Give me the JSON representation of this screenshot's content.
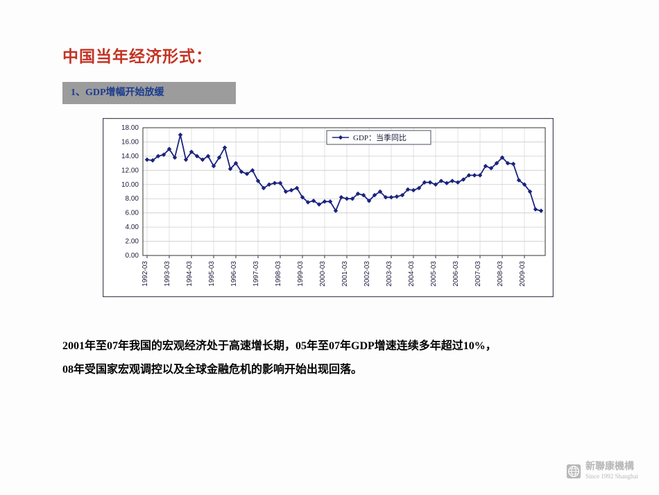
{
  "title": {
    "text": "中国当年经济形式：",
    "color": "#c33323"
  },
  "subtitle": {
    "text": "1、GDP增幅开始放缓",
    "bg_color": "#9c9c9c",
    "text_color": "#1a3b8e"
  },
  "chart": {
    "type": "line",
    "border_color": "#4a4f60",
    "inner_bg": "#ffffff",
    "grid_color": "#cccccc",
    "axis_color": "#333333",
    "series": {
      "label": "GDP：当季同比",
      "color": "#1a237e",
      "marker": "diamond",
      "line_width": 1.8,
      "values": [
        13.5,
        13.4,
        14.0,
        14.2,
        15.0,
        13.8,
        17.0,
        13.5,
        14.6,
        14.0,
        13.5,
        14.0,
        12.6,
        13.8,
        15.2,
        12.2,
        13.0,
        11.8,
        11.5,
        12.0,
        10.5,
        9.5,
        10.0,
        10.2,
        10.2,
        9.0,
        9.2,
        9.5,
        8.2,
        7.5,
        7.7,
        7.2,
        7.6,
        7.6,
        6.3,
        8.2,
        8.0,
        8.0,
        8.7,
        8.5,
        7.7,
        8.5,
        9.0,
        8.2,
        8.2,
        8.3,
        8.5,
        9.3,
        9.2,
        9.5,
        10.3,
        10.3,
        10.0,
        10.5,
        10.2,
        10.5,
        10.3,
        10.7,
        11.3,
        11.3,
        11.3,
        12.6,
        12.3,
        13.0,
        13.8,
        13.0,
        12.9,
        10.6,
        10.0,
        9.0,
        6.5,
        6.3
      ]
    },
    "legend": {
      "bg": "#ffffff",
      "border": "#4a4f60",
      "fontsize": 11
    },
    "y_axis": {
      "ylim": [
        0,
        18
      ],
      "tick_step": 2,
      "tick_labels": [
        "0.00",
        "2.00",
        "4.00",
        "6.00",
        "8.00",
        "10.00",
        "12.00",
        "14.00",
        "16.00",
        "18.00"
      ],
      "fontsize": 10,
      "label_color": "#1a1a3a"
    },
    "x_axis": {
      "labels": [
        "1992-03",
        "1993-03",
        "1994-03",
        "1995-03",
        "1996-03",
        "1997-03",
        "1998-03",
        "1999-03",
        "2000-03",
        "2001-03",
        "2002-03",
        "2003-03",
        "2004-03",
        "2005-03",
        "2006-03",
        "2007-03",
        "2008-03",
        "2009-03"
      ],
      "rotation": -90,
      "fontsize": 10,
      "label_color": "#1a1a3a"
    }
  },
  "body": {
    "line1": "2001年至07年我国的宏观经济处于高速增长期，05年至07年GDP增速连续多年超过10%，",
    "line2": "08年受国家宏观调控以及全球金融危机的影响开始出现回落。",
    "color": "#000000"
  },
  "footer": {
    "main": "新聯康機構",
    "sub": "Since 1992 Shanghai",
    "color": "#b8b8b8"
  }
}
